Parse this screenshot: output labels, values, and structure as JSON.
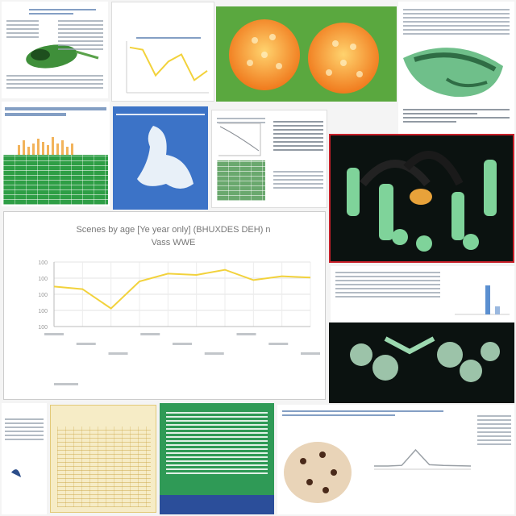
{
  "main_chart": {
    "title": "Scenes by age [Ye year only] (BHUXDES DEH) n",
    "subtitle": "Vass WWE",
    "chart_data": {
      "type": "line",
      "yticks": [
        "100",
        "100",
        "100",
        "100",
        "100"
      ],
      "values": [
        62,
        58,
        28,
        70,
        82,
        80,
        88,
        72,
        78,
        76
      ],
      "line_color": "#f2d23c",
      "ylim": [
        0,
        100
      ],
      "grid": true
    }
  },
  "small_chart": {
    "chart_data": {
      "type": "line",
      "values": [
        90,
        85,
        30,
        60,
        75,
        20,
        40
      ],
      "line_color": "#f2d23c",
      "ylim": [
        0,
        100
      ]
    }
  },
  "bottom_chart": {
    "chart_data": {
      "type": "line",
      "values": [
        10,
        10,
        12,
        60,
        14,
        12,
        11,
        10
      ],
      "line_color": "#9aa0a6",
      "ylim": [
        0,
        100
      ]
    }
  },
  "colors": {
    "green_panel": "#2e9e45",
    "blue_panel": "#3c73c7",
    "dark_bg": "#0b1210",
    "accent_orange": "#f28c28"
  },
  "icons": [
    "leaf-icon",
    "pollen-icon",
    "pod-icon",
    "figure-icon",
    "root-icon",
    "cell-icon",
    "seed-icon"
  ]
}
